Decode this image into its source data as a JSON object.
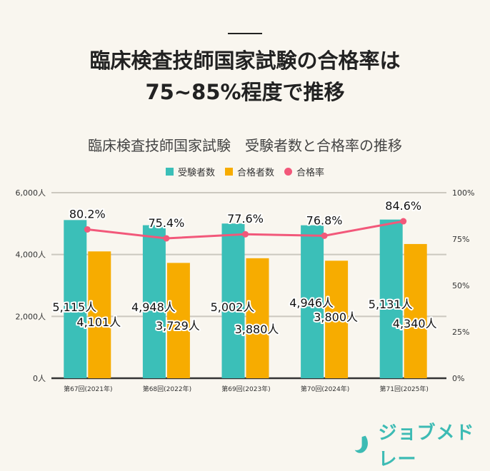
{
  "header": {
    "line1": "臨床検査技師国家試験の合格率は",
    "line2": "75~85%程度で推移"
  },
  "brand": {
    "name": "ジョブメドレー",
    "color": "#3dbbb4"
  },
  "chart_data": {
    "type": "bar+line",
    "title": "臨床検査技師国家試験　受験者数と合格率の推移",
    "categories": [
      "第67回(2021年)",
      "第68回(2022年)",
      "第69回(2023年)",
      "第70回(2024年)",
      "第71回(2025年)"
    ],
    "series": [
      {
        "name": "受験者数",
        "type": "bar",
        "axis": "left",
        "color": "#3bbfb8",
        "values": [
          5115,
          4948,
          5002,
          4946,
          5131
        ],
        "labels": [
          "5,115人",
          "4,948人",
          "5,002人",
          "4,946人",
          "5,131人"
        ]
      },
      {
        "name": "合格者数",
        "type": "bar",
        "axis": "left",
        "color": "#f7ac00",
        "values": [
          4101,
          3729,
          3880,
          3800,
          4340
        ],
        "labels": [
          "4,101人",
          "3,729人",
          "3,880人",
          "3,800人",
          "4,340人"
        ]
      },
      {
        "name": "合格率",
        "type": "line",
        "axis": "right",
        "color": "#f2587a",
        "values": [
          80.2,
          75.4,
          77.6,
          76.8,
          84.6
        ],
        "labels": [
          "80.2%",
          "75.4%",
          "77.6%",
          "76.8%",
          "84.6%"
        ]
      }
    ],
    "left_axis": {
      "range": [
        0,
        6000
      ],
      "ticks": [
        0,
        2000,
        4000,
        6000
      ],
      "tick_labels": [
        "0人",
        "2,000人",
        "4,000人",
        "6,000人"
      ]
    },
    "right_axis": {
      "range": [
        0,
        100
      ],
      "ticks": [
        0,
        25,
        50,
        75,
        100
      ],
      "tick_labels": [
        "0%",
        "25%",
        "50%",
        "75%",
        "100%"
      ]
    },
    "grid": true,
    "legend": "top"
  }
}
